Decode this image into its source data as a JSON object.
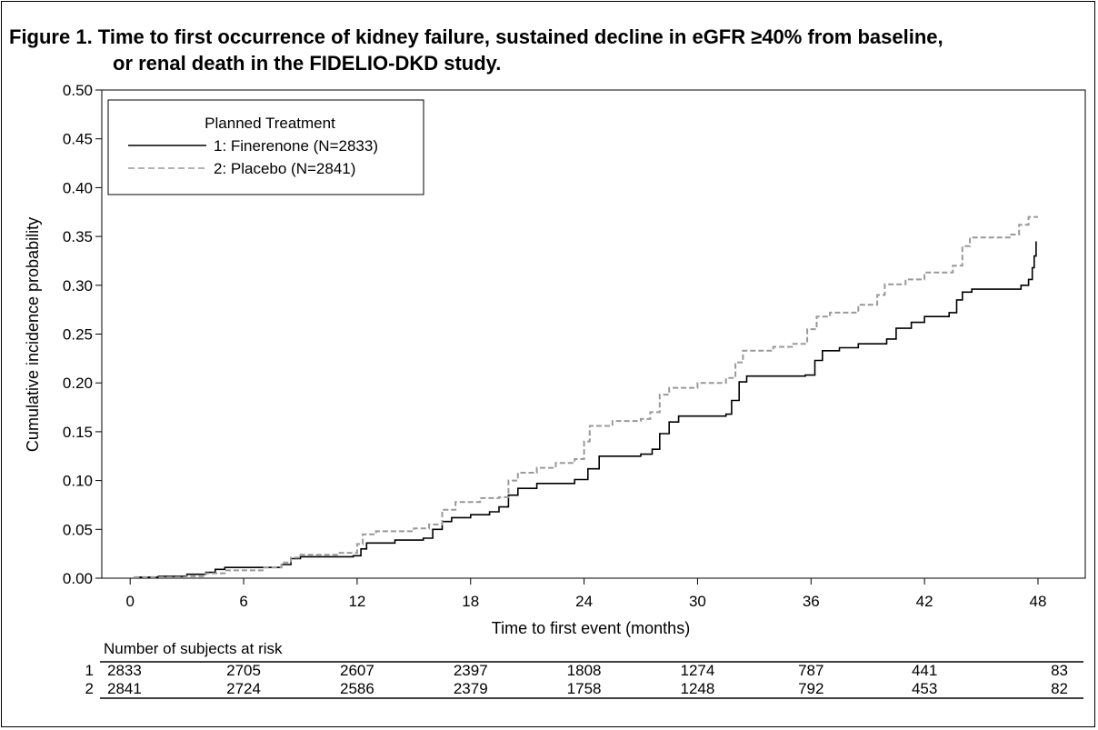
{
  "figure": {
    "title_line1": "Figure 1. Time to first occurrence of kidney failure, sustained decline in eGFR ≥40% from baseline,",
    "title_line2": "or renal death in the FIDELIO-DKD study."
  },
  "colors": {
    "finerenone": "#000000",
    "placebo": "#999999",
    "axis": "#000000"
  },
  "chart_data": {
    "type": "line",
    "title": "Figure 1. Time to first occurrence of kidney failure, sustained decline in eGFR ≥40% from baseline, or renal death in the FIDELIO-DKD study.",
    "xlabel": "Time to first event (months)",
    "ylabel": "Cumulative incidence probability",
    "xlim": [
      -1.5,
      50.5
    ],
    "ylim": [
      0,
      0.5
    ],
    "x_ticks": [
      0,
      6,
      12,
      18,
      24,
      30,
      36,
      42,
      48
    ],
    "y_ticks": [
      0.0,
      0.05,
      0.1,
      0.15,
      0.2,
      0.25,
      0.3,
      0.35,
      0.4,
      0.45,
      0.5
    ],
    "y_tick_labels": [
      "0.00",
      "0.05",
      "0.10",
      "0.15",
      "0.20",
      "0.25",
      "0.30",
      "0.35",
      "0.40",
      "0.45",
      "0.50"
    ],
    "grid": false,
    "legend": {
      "title": "Planned Treatment",
      "position": "top-left",
      "entries": [
        "1: Finerenone (N=2833)",
        "2: Placebo (N=2841)"
      ]
    },
    "series": [
      {
        "name": "1: Finerenone (N=2833)",
        "style": "solid",
        "points": [
          [
            0.2,
            0.001
          ],
          [
            1.5,
            0.002
          ],
          [
            3,
            0.004
          ],
          [
            4,
            0.006
          ],
          [
            4.5,
            0.009
          ],
          [
            5,
            0.011
          ],
          [
            8,
            0.014
          ],
          [
            8.5,
            0.02
          ],
          [
            9,
            0.022
          ],
          [
            11.8,
            0.023
          ],
          [
            12.2,
            0.03
          ],
          [
            12.5,
            0.036
          ],
          [
            14,
            0.039
          ],
          [
            15.5,
            0.041
          ],
          [
            16,
            0.05
          ],
          [
            16.5,
            0.058
          ],
          [
            17,
            0.062
          ],
          [
            18,
            0.065
          ],
          [
            19,
            0.068
          ],
          [
            19.5,
            0.073
          ],
          [
            20,
            0.085
          ],
          [
            20.5,
            0.092
          ],
          [
            21.5,
            0.097
          ],
          [
            23.5,
            0.101
          ],
          [
            24.2,
            0.112
          ],
          [
            24.8,
            0.125
          ],
          [
            27,
            0.127
          ],
          [
            27.6,
            0.132
          ],
          [
            28,
            0.148
          ],
          [
            28.5,
            0.16
          ],
          [
            29,
            0.166
          ],
          [
            31.5,
            0.168
          ],
          [
            31.8,
            0.182
          ],
          [
            32.2,
            0.201
          ],
          [
            32.6,
            0.207
          ],
          [
            35.7,
            0.208
          ],
          [
            36.2,
            0.223
          ],
          [
            36.6,
            0.233
          ],
          [
            37.5,
            0.236
          ],
          [
            38.5,
            0.24
          ],
          [
            40,
            0.245
          ],
          [
            40.5,
            0.256
          ],
          [
            41.3,
            0.262
          ],
          [
            42,
            0.268
          ],
          [
            43.3,
            0.272
          ],
          [
            43.7,
            0.285
          ],
          [
            44,
            0.293
          ],
          [
            44.5,
            0.296
          ],
          [
            47.1,
            0.3
          ],
          [
            47.5,
            0.306
          ],
          [
            47.7,
            0.318
          ],
          [
            47.8,
            0.33
          ],
          [
            47.9,
            0.345
          ]
        ]
      },
      {
        "name": "2: Placebo (N=2841)",
        "style": "dashed",
        "points": [
          [
            0.2,
            0.001
          ],
          [
            3,
            0.002
          ],
          [
            4,
            0.005
          ],
          [
            5,
            0.008
          ],
          [
            7,
            0.011
          ],
          [
            8,
            0.016
          ],
          [
            8.5,
            0.021
          ],
          [
            9,
            0.024
          ],
          [
            11,
            0.026
          ],
          [
            12,
            0.035
          ],
          [
            12.3,
            0.045
          ],
          [
            13,
            0.048
          ],
          [
            15,
            0.051
          ],
          [
            15.8,
            0.055
          ],
          [
            16.5,
            0.07
          ],
          [
            17.2,
            0.078
          ],
          [
            18.5,
            0.082
          ],
          [
            19.5,
            0.083
          ],
          [
            20,
            0.1
          ],
          [
            20.5,
            0.108
          ],
          [
            21.5,
            0.113
          ],
          [
            22.5,
            0.118
          ],
          [
            23.5,
            0.122
          ],
          [
            24,
            0.14
          ],
          [
            24.3,
            0.156
          ],
          [
            25.5,
            0.161
          ],
          [
            27,
            0.163
          ],
          [
            27.5,
            0.17
          ],
          [
            28,
            0.188
          ],
          [
            28.5,
            0.195
          ],
          [
            30,
            0.2
          ],
          [
            31.5,
            0.205
          ],
          [
            32,
            0.221
          ],
          [
            32.4,
            0.233
          ],
          [
            34,
            0.237
          ],
          [
            35,
            0.24
          ],
          [
            35.8,
            0.255
          ],
          [
            36.3,
            0.268
          ],
          [
            37,
            0.272
          ],
          [
            38.5,
            0.28
          ],
          [
            39.5,
            0.29
          ],
          [
            39.9,
            0.301
          ],
          [
            41,
            0.306
          ],
          [
            42,
            0.313
          ],
          [
            43.5,
            0.32
          ],
          [
            44,
            0.34
          ],
          [
            44.4,
            0.349
          ],
          [
            46.5,
            0.352
          ],
          [
            47,
            0.362
          ],
          [
            47.5,
            0.37
          ],
          [
            48,
            0.37
          ]
        ]
      }
    ],
    "risk_table": {
      "title": "Number of subjects at risk",
      "times": [
        0,
        6,
        12,
        18,
        24,
        30,
        36,
        42,
        48
      ],
      "rows": [
        {
          "label": "1",
          "values": [
            "2833",
            "2705",
            "2607",
            "2397",
            "1808",
            "1274",
            "787",
            "441",
            "83"
          ]
        },
        {
          "label": "2",
          "values": [
            "2841",
            "2724",
            "2586",
            "2379",
            "1758",
            "1248",
            "792",
            "453",
            "82"
          ]
        }
      ]
    }
  }
}
